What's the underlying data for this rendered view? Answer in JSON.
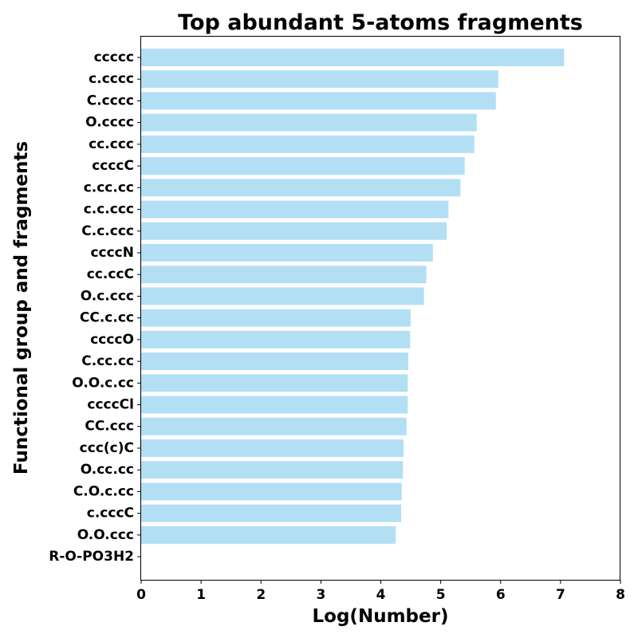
{
  "chart_data": {
    "type": "bar",
    "orientation": "horizontal",
    "title": "Top abundant 5-atoms fragments",
    "xlabel": "Log(Number)",
    "ylabel": "Functional group and fragments",
    "xlim": [
      0,
      8
    ],
    "xticks": [
      "0",
      "1",
      "2",
      "3",
      "4",
      "5",
      "6",
      "7",
      "8"
    ],
    "grid": false,
    "bar_color": "#b3dff5",
    "categories": [
      "ccccc",
      "c.cccc",
      "C.cccc",
      "O.cccc",
      "cc.ccc",
      "ccccC",
      "c.cc.cc",
      "c.c.ccc",
      "C.c.ccc",
      "ccccN",
      "cc.ccC",
      "O.c.ccc",
      "CC.c.cc",
      "ccccO",
      "C.cc.cc",
      "O.O.c.cc",
      "ccccCl",
      "CC.ccc",
      "ccc(c)C",
      "O.cc.cc",
      "C.O.c.cc",
      "c.cccC",
      "O.O.ccc",
      "R-O-PO3H2"
    ],
    "values": [
      7.06,
      5.96,
      5.92,
      5.6,
      5.56,
      5.4,
      5.33,
      5.13,
      5.1,
      4.87,
      4.76,
      4.72,
      4.5,
      4.49,
      4.46,
      4.45,
      4.45,
      4.43,
      4.38,
      4.37,
      4.35,
      4.34,
      4.25,
      0
    ]
  }
}
